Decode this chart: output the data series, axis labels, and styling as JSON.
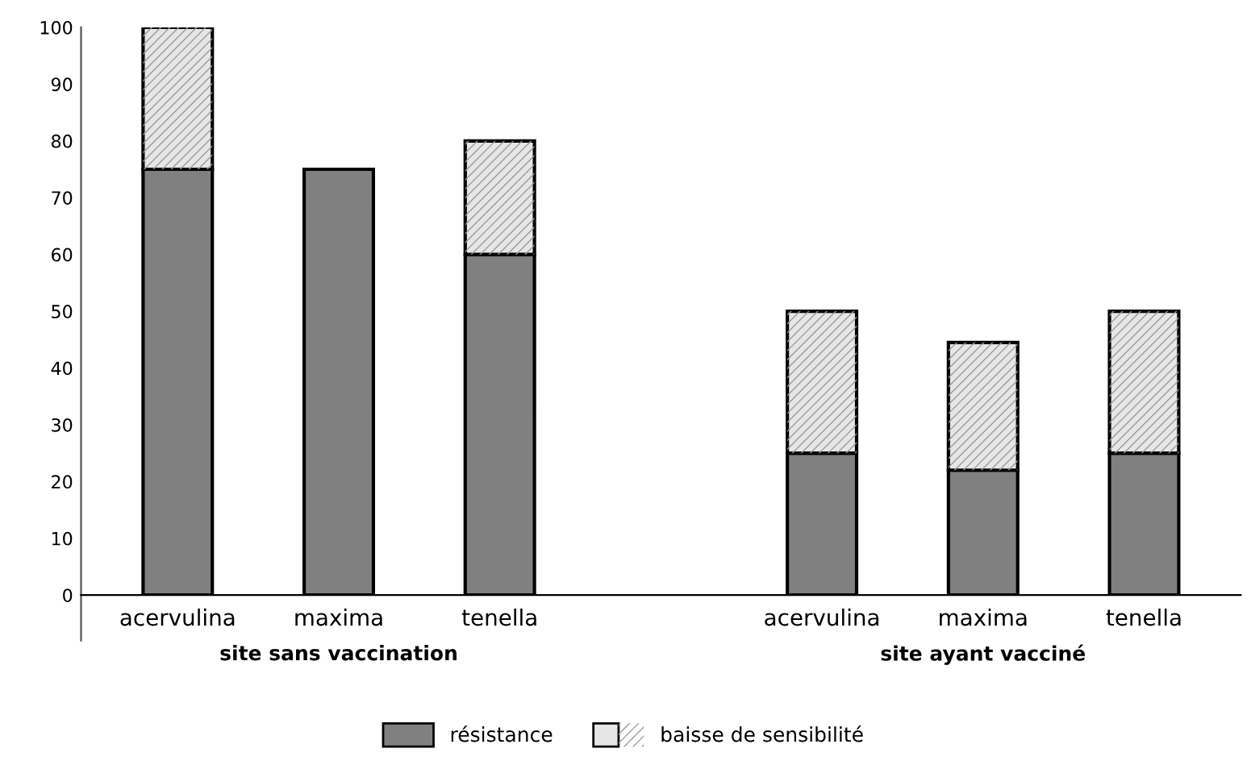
{
  "chart_data": {
    "type": "bar",
    "stacked": true,
    "categories": [
      "acervulina",
      "maxima",
      "tenella",
      null,
      "acervulina",
      "maxima",
      "tenella"
    ],
    "series": [
      {
        "name": "résistance",
        "color": "#808080",
        "values": [
          75,
          75,
          60,
          null,
          25,
          22,
          25
        ]
      },
      {
        "name": "baisse de sensibilité",
        "color": "#e6e6e6",
        "values": [
          25,
          0,
          20,
          null,
          25,
          22.5,
          25
        ]
      }
    ],
    "annotations": [
      "site sans vaccination",
      "site ayant vacciné"
    ],
    "ylim": [
      0,
      100
    ],
    "yticks": [
      0,
      10,
      20,
      30,
      40,
      50,
      60,
      70,
      80,
      90,
      100
    ],
    "grid": false,
    "legend": "bottom"
  }
}
